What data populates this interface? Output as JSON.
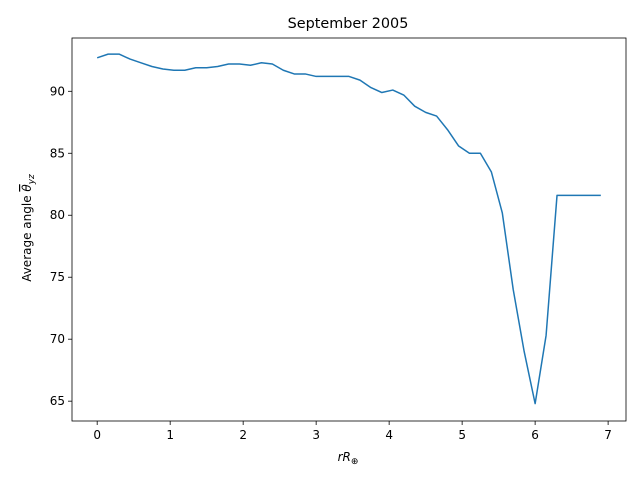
{
  "chart_data": {
    "type": "line",
    "title": "September 2005",
    "xlabel": "rR⊕",
    "ylabel": "Average angle θyz",
    "xlim": [
      -0.345,
      7.245
    ],
    "ylim": [
      63.4,
      94.3
    ],
    "xticks": [
      0,
      1,
      2,
      3,
      4,
      5,
      6,
      7
    ],
    "yticks": [
      65,
      70,
      75,
      80,
      85,
      90
    ],
    "grid": false,
    "legend": "none",
    "series": [
      {
        "color": "#1f77b4",
        "x": [
          0,
          0.15,
          0.3,
          0.45,
          0.6,
          0.75,
          0.9,
          1.05,
          1.2,
          1.35,
          1.5,
          1.65,
          1.8,
          1.95,
          2.1,
          2.25,
          2.4,
          2.55,
          2.7,
          2.85,
          3.0,
          3.15,
          3.3,
          3.45,
          3.6,
          3.75,
          3.9,
          4.05,
          4.2,
          4.35,
          4.5,
          4.65,
          4.8,
          4.95,
          5.1,
          5.25,
          5.4,
          5.55,
          5.7,
          5.85,
          6.0,
          6.15,
          6.3,
          6.45,
          6.6,
          6.75,
          6.9
        ],
        "y": [
          92.7,
          93.0,
          93.0,
          92.6,
          92.3,
          92.0,
          91.8,
          91.7,
          91.7,
          91.9,
          91.9,
          92.0,
          92.2,
          92.2,
          92.1,
          92.3,
          92.2,
          91.7,
          91.4,
          91.4,
          91.2,
          91.2,
          91.2,
          91.2,
          90.9,
          90.3,
          89.9,
          90.1,
          89.7,
          88.8,
          88.3,
          88.0,
          86.9,
          85.6,
          85.0,
          85.0,
          83.5,
          80.2,
          74.0,
          69.0,
          64.8,
          70.3,
          81.6,
          81.6,
          81.6,
          81.6,
          81.6
        ]
      }
    ]
  }
}
